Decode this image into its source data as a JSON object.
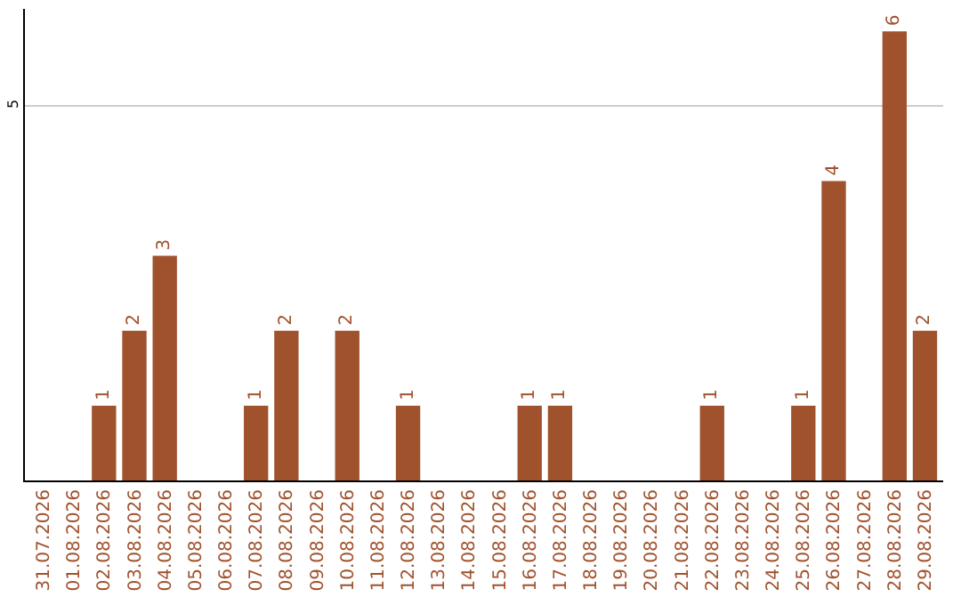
{
  "chart_data": {
    "type": "bar",
    "categories": [
      "31.07.2026",
      "01.08.2026",
      "02.08.2026",
      "03.08.2026",
      "04.08.2026",
      "05.08.2026",
      "06.08.2026",
      "07.08.2026",
      "08.08.2026",
      "09.08.2026",
      "10.08.2026",
      "11.08.2026",
      "12.08.2026",
      "13.08.2026",
      "14.08.2026",
      "15.08.2026",
      "16.08.2026",
      "17.08.2026",
      "18.08.2026",
      "19.08.2026",
      "20.08.2026",
      "21.08.2026",
      "22.08.2026",
      "23.08.2026",
      "24.08.2026",
      "25.08.2026",
      "26.08.2026",
      "27.08.2026",
      "28.08.2026",
      "29.08.2026"
    ],
    "values": [
      0,
      0,
      1,
      2,
      3,
      0,
      0,
      1,
      2,
      0,
      2,
      0,
      1,
      0,
      0,
      0,
      1,
      1,
      0,
      0,
      0,
      0,
      1,
      0,
      0,
      1,
      4,
      0,
      6,
      2
    ],
    "value_labels": [
      null,
      null,
      "1",
      "2",
      "3",
      null,
      null,
      "1",
      "2",
      null,
      "2",
      null,
      "1",
      null,
      null,
      null,
      "1",
      "1",
      null,
      null,
      null,
      null,
      "1",
      null,
      null,
      "1",
      "4",
      null,
      "6",
      "2"
    ],
    "color": "#a0522d",
    "ylim": [
      0,
      6.3
    ],
    "yticks": [
      5
    ],
    "grid": "y"
  }
}
